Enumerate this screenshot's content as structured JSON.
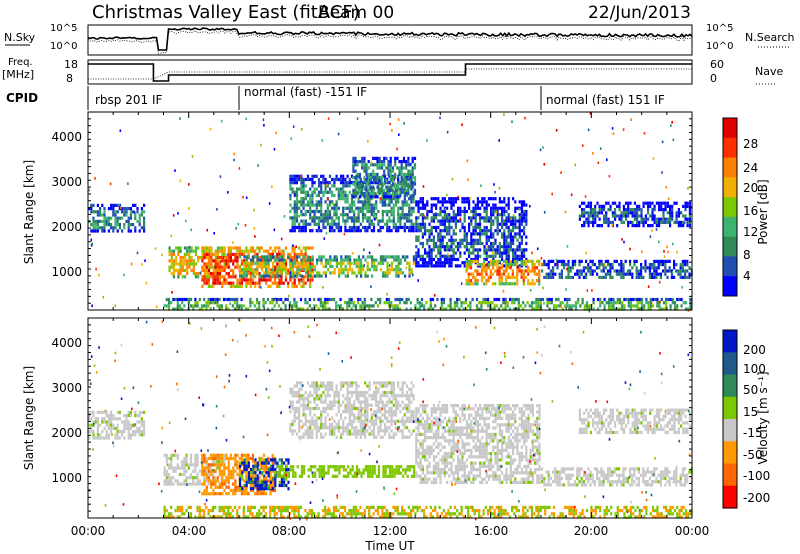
{
  "header": {
    "title": "Christmas Valley East (fitACF)",
    "beam": "Beam 00",
    "date": "22/Jun/2013"
  },
  "params": {
    "nsky_label": "N.Sky",
    "nsky_ticks": [
      "10^5",
      "10^0"
    ],
    "nsearch_label": "N.Search",
    "nsearch_ticks": [
      "10^5",
      "10^0"
    ],
    "freq_label": "Freq.",
    "freq_unit": "[MHz]",
    "freq_ticks": [
      "18",
      "8"
    ],
    "nave_label": "Nave",
    "nave_ticks": [
      "60",
      "0"
    ],
    "cpid_label": "CPID",
    "cpid_segments": [
      {
        "label": "rbsp 201 IF",
        "start_hour": 0
      },
      {
        "label": "normal (fast) -151 IF",
        "start_hour": 6
      },
      {
        "label": "normal (fast) 151 IF",
        "start_hour": 18
      }
    ]
  },
  "x_axis": {
    "label": "Time UT",
    "ticks": [
      "00:00",
      "04:00",
      "08:00",
      "12:00",
      "16:00",
      "20:00",
      "00:00"
    ]
  },
  "power_panel": {
    "ylabel": "Slant Range [km]",
    "yticks": [
      "1000",
      "2000",
      "3000",
      "4000"
    ],
    "colorbar_label": "Power [dB]",
    "colorbar_ticks": [
      "28",
      "24",
      "20",
      "16",
      "12",
      "8",
      "4"
    ],
    "colors": [
      "#0000ff",
      "#1f4fb0",
      "#2e8b57",
      "#3cb371",
      "#7cc700",
      "#f0b000",
      "#ff7f00",
      "#ff3000",
      "#e00000"
    ]
  },
  "velocity_panel": {
    "ylabel": "Slant Range [km]",
    "yticks": [
      "1000",
      "2000",
      "3000",
      "4000"
    ],
    "colorbar_label": "Velocity [m s⁻¹]",
    "colorbar_ticks": [
      "200",
      "100",
      "50",
      "15",
      "-15",
      "-50",
      "-100",
      "-200"
    ],
    "colors": [
      "#0018c8",
      "#1e5a8c",
      "#2e8b57",
      "#7cc700",
      "#c8c8c8",
      "#ff9900",
      "#ff6600",
      "#ff0000"
    ]
  },
  "chart_data": [
    {
      "type": "heatmap",
      "title": "Power",
      "xlabel": "Time UT",
      "ylabel": "Slant Range [km]",
      "x_range_hours": [
        0,
        24
      ],
      "ylim": [
        180,
        4600
      ],
      "colorbar": {
        "label": "Power [dB]",
        "range": [
          0,
          30
        ]
      },
      "echo_regions": [
        {
          "start_hour": 0.0,
          "end_hour": 2.3,
          "range_lo_km": 1900,
          "range_hi_km": 2550,
          "level": 2
        },
        {
          "start_hour": 3.2,
          "end_hour": 5.5,
          "range_lo_km": 900,
          "range_hi_km": 1600,
          "level": 5
        },
        {
          "start_hour": 4.5,
          "end_hour": 9.0,
          "range_lo_km": 700,
          "range_hi_km": 1600,
          "level": 7
        },
        {
          "start_hour": 6.0,
          "end_hour": 13.0,
          "range_lo_km": 900,
          "range_hi_km": 1400,
          "level": 4
        },
        {
          "start_hour": 8.0,
          "end_hour": 13.0,
          "range_lo_km": 1900,
          "range_hi_km": 3200,
          "level": 2
        },
        {
          "start_hour": 10.5,
          "end_hour": 13.0,
          "range_lo_km": 2700,
          "range_hi_km": 3600,
          "level": 2
        },
        {
          "start_hour": 13.0,
          "end_hour": 17.5,
          "range_lo_km": 1100,
          "range_hi_km": 2700,
          "level": 1
        },
        {
          "start_hour": 15.0,
          "end_hour": 18.0,
          "range_lo_km": 700,
          "range_hi_km": 1300,
          "level": 6
        },
        {
          "start_hour": 18.0,
          "end_hour": 24.0,
          "range_lo_km": 900,
          "range_hi_km": 1300,
          "level": 1
        },
        {
          "start_hour": 19.5,
          "end_hour": 24.0,
          "range_lo_km": 2000,
          "range_hi_km": 2600,
          "level": 1
        },
        {
          "start_hour": 3.0,
          "end_hour": 24.0,
          "range_lo_km": 180,
          "range_hi_km": 450,
          "level": 3
        }
      ]
    },
    {
      "type": "heatmap",
      "title": "Velocity",
      "xlabel": "Time UT",
      "ylabel": "Slant Range [km]",
      "x_range_hours": [
        0,
        24
      ],
      "ylim": [
        180,
        4600
      ],
      "colorbar": {
        "label": "Velocity [m s⁻¹]",
        "range": [
          -200,
          200
        ]
      },
      "echo_regions": [
        {
          "start_hour": 0.0,
          "end_hour": 2.3,
          "range_lo_km": 1900,
          "range_hi_km": 2550,
          "class": "ground"
        },
        {
          "start_hour": 3.0,
          "end_hour": 5.5,
          "range_lo_km": 900,
          "range_hi_km": 1600,
          "class": "ground"
        },
        {
          "start_hour": 4.5,
          "end_hour": 7.5,
          "range_lo_km": 700,
          "range_hi_km": 1600,
          "class": "away_moderate"
        },
        {
          "start_hour": 6.0,
          "end_hour": 8.0,
          "range_lo_km": 800,
          "range_hi_km": 1500,
          "class": "toward_high"
        },
        {
          "start_hour": 7.5,
          "end_hour": 13.0,
          "range_lo_km": 1050,
          "range_hi_km": 1350,
          "class": "toward_low"
        },
        {
          "start_hour": 8.0,
          "end_hour": 13.0,
          "range_lo_km": 1900,
          "range_hi_km": 3200,
          "class": "ground"
        },
        {
          "start_hour": 13.0,
          "end_hour": 18.0,
          "range_lo_km": 900,
          "range_hi_km": 2700,
          "class": "ground"
        },
        {
          "start_hour": 18.0,
          "end_hour": 24.0,
          "range_lo_km": 900,
          "range_hi_km": 1300,
          "class": "ground"
        },
        {
          "start_hour": 19.5,
          "end_hour": 24.0,
          "range_lo_km": 2000,
          "range_hi_km": 2600,
          "class": "ground"
        },
        {
          "start_hour": 3.0,
          "end_hour": 24.0,
          "range_lo_km": 180,
          "range_hi_km": 450,
          "class": "away_low"
        }
      ]
    }
  ]
}
